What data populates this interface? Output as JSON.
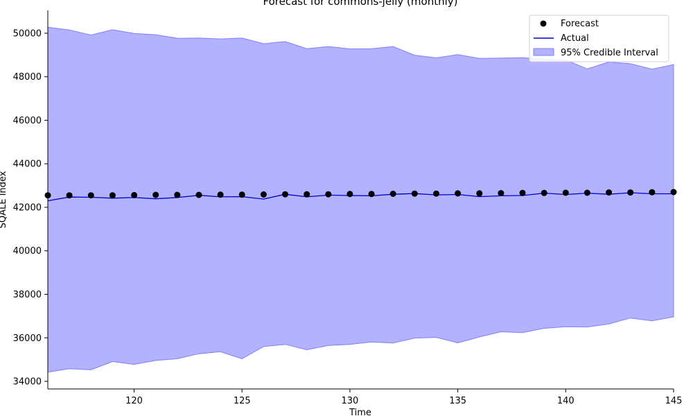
{
  "chart_data": {
    "type": "line",
    "title": "Forecast for commons-jelly (monthly)",
    "xlabel": "Time",
    "ylabel": "SQALE Index",
    "xlim": [
      116,
      145
    ],
    "ylim": [
      33650,
      51050
    ],
    "grid": false,
    "legend_position": "top-right",
    "x_ticks": [
      120,
      125,
      130,
      135,
      140,
      145
    ],
    "y_ticks": [
      34000,
      36000,
      38000,
      40000,
      42000,
      44000,
      46000,
      48000,
      50000
    ],
    "x": [
      116,
      117,
      118,
      119,
      120,
      121,
      122,
      123,
      124,
      125,
      126,
      127,
      128,
      129,
      130,
      131,
      132,
      133,
      134,
      135,
      136,
      137,
      138,
      139,
      140,
      141,
      142,
      143,
      144,
      145
    ],
    "series": [
      {
        "name": "Forecast",
        "kind": "scatter",
        "color": "#000000",
        "values": [
          42550,
          42550,
          42550,
          42550,
          42560,
          42570,
          42570,
          42570,
          42580,
          42580,
          42590,
          42600,
          42600,
          42600,
          42610,
          42610,
          42620,
          42630,
          42630,
          42640,
          42640,
          42650,
          42660,
          42660,
          42670,
          42670,
          42680,
          42680,
          42690,
          42700
        ]
      },
      {
        "name": "Actual",
        "kind": "line",
        "color": "#0000cc",
        "values": [
          42300,
          42470,
          42460,
          42420,
          42450,
          42390,
          42450,
          42550,
          42480,
          42490,
          42380,
          42600,
          42480,
          42560,
          42540,
          42530,
          42600,
          42630,
          42570,
          42590,
          42490,
          42530,
          42540,
          42650,
          42590,
          42650,
          42600,
          42670,
          42620,
          42620
        ]
      }
    ],
    "interval": {
      "name": "95% Credible Interval",
      "color": "#b2b2ff",
      "edge_color": "#7f7fff",
      "upper": [
        50280,
        50150,
        49920,
        50160,
        49990,
        49930,
        49770,
        49780,
        49740,
        49780,
        49520,
        49620,
        49290,
        49390,
        49280,
        49290,
        49390,
        48990,
        48870,
        49020,
        48840,
        48860,
        48880,
        48800,
        48780,
        48360,
        48680,
        48600,
        48350,
        48560
      ],
      "lower": [
        34420,
        34580,
        34530,
        34910,
        34780,
        34960,
        35040,
        35270,
        35360,
        35040,
        35600,
        35700,
        35450,
        35650,
        35700,
        35810,
        35760,
        35990,
        36020,
        35770,
        36040,
        36280,
        36240,
        36440,
        36510,
        36500,
        36640,
        36910,
        36780,
        36960
      ]
    }
  }
}
